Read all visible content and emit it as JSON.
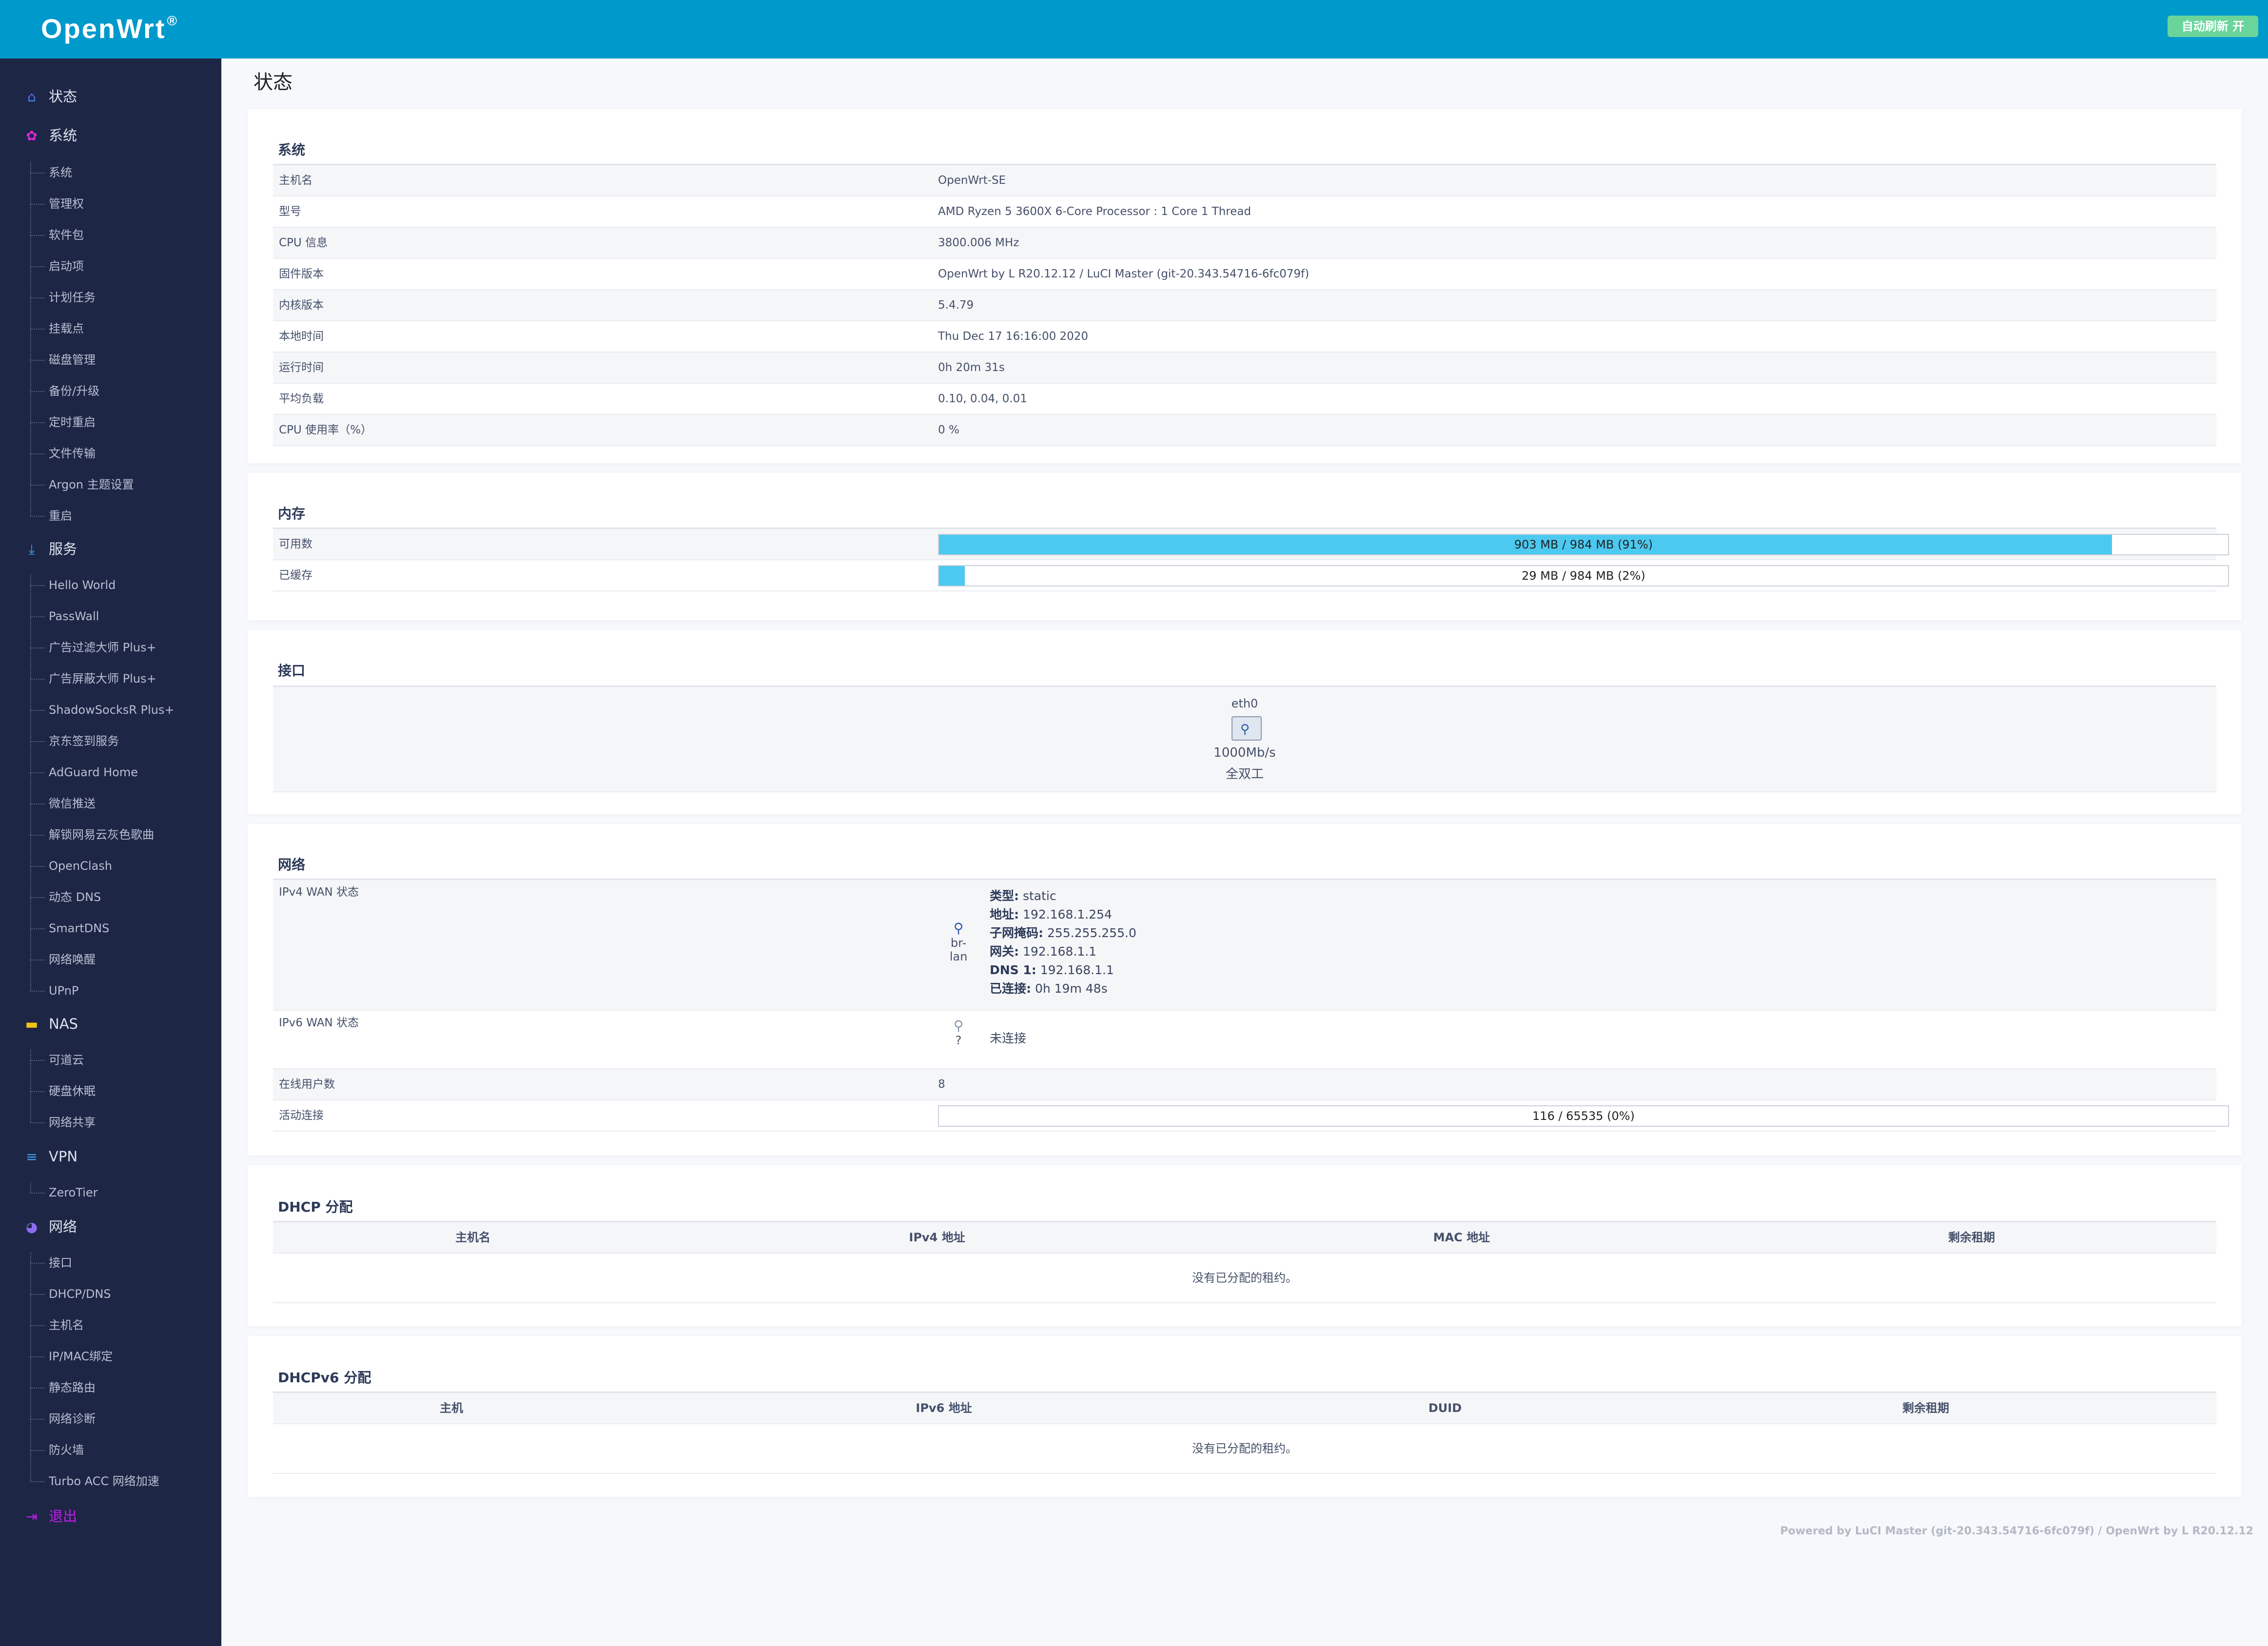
{
  "header": {
    "brand": "OpenWrt",
    "brand_mark": "®",
    "refresh_label": "自动刷新 开"
  },
  "sidebar": {
    "categories": {
      "status": "状态",
      "system": "系统",
      "services": "服务",
      "nas": "NAS",
      "vpn": "VPN",
      "network": "网络",
      "logout": "退出"
    },
    "system_items": [
      "系统",
      "管理权",
      "软件包",
      "启动项",
      "计划任务",
      "挂载点",
      "磁盘管理",
      "备份/升级",
      "定时重启",
      "文件传输",
      "Argon 主题设置",
      "重启"
    ],
    "services_items": [
      "Hello World",
      "PassWall",
      "广告过滤大师 Plus+",
      "广告屏蔽大师 Plus+",
      "ShadowSocksR Plus+",
      "京东签到服务",
      "AdGuard Home",
      "微信推送",
      "解锁网易云灰色歌曲",
      "OpenClash",
      "动态 DNS",
      "SmartDNS",
      "网络唤醒",
      "UPnP"
    ],
    "nas_items": [
      "可道云",
      "硬盘休眠",
      "网络共享"
    ],
    "vpn_items": [
      "ZeroTier"
    ],
    "network_items": [
      "接口",
      "DHCP/DNS",
      "主机名",
      "IP/MAC绑定",
      "静态路由",
      "网络诊断",
      "防火墙",
      "Turbo ACC 网络加速"
    ]
  },
  "page_title": "状态",
  "system": {
    "title": "系统",
    "rows": [
      {
        "k": "主机名",
        "v": "OpenWrt-SE"
      },
      {
        "k": "型号",
        "v": "AMD Ryzen 5 3600X 6-Core Processor : 1 Core 1 Thread"
      },
      {
        "k": "CPU 信息",
        "v": "3800.006 MHz"
      },
      {
        "k": "固件版本",
        "v": "OpenWrt by L R20.12.12 / LuCI Master (git-20.343.54716-6fc079f)"
      },
      {
        "k": "内核版本",
        "v": "5.4.79"
      },
      {
        "k": "本地时间",
        "v": "Thu Dec 17 16:16:00 2020"
      },
      {
        "k": "运行时间",
        "v": "0h 20m 31s"
      },
      {
        "k": "平均负载",
        "v": "0.10, 0.04, 0.01"
      },
      {
        "k": "CPU 使用率（%）",
        "v": "0 %"
      }
    ]
  },
  "memory": {
    "title": "内存",
    "available_label": "可用数",
    "available_text": "903 MB / 984 MB (91%)",
    "available_fraction": 0.91,
    "cached_label": "已缓存",
    "cached_text": "29 MB / 984 MB (2%)",
    "cached_fraction": 0.02
  },
  "interfaces": {
    "title": "接口",
    "name": "eth0",
    "speed": "1000Mb/s",
    "duplex": "全双工"
  },
  "network": {
    "title": "网络",
    "ipv4_label": "IPv4 WAN 状态",
    "ipv4_iface": "br-lan",
    "ipv4_details": [
      {
        "k": "类型:",
        "v": "static"
      },
      {
        "k": "地址:",
        "v": "192.168.1.254"
      },
      {
        "k": "子网掩码:",
        "v": "255.255.255.0"
      },
      {
        "k": "网关:",
        "v": "192.168.1.1"
      },
      {
        "k": "DNS 1:",
        "v": "192.168.1.1"
      },
      {
        "k": "已连接:",
        "v": "0h 19m 48s"
      }
    ],
    "ipv6_label": "IPv6 WAN 状态",
    "ipv6_iface": "?",
    "ipv6_status": "未连接",
    "online_users_label": "在线用户数",
    "online_users": "8",
    "connections_label": "活动连接",
    "connections_text": "116 / 65535 (0%)",
    "connections_fraction": 0.0
  },
  "dhcp": {
    "title": "DHCP 分配",
    "columns": [
      "主机名",
      "IPv4 地址",
      "MAC 地址",
      "剩余租期"
    ],
    "empty": "没有已分配的租约。"
  },
  "dhcpv6": {
    "title": "DHCPv6 分配",
    "columns": [
      "主机",
      "IPv6 地址",
      "DUID",
      "剩余租期"
    ],
    "empty": "没有已分配的租约。"
  },
  "footer": "Powered by LuCI Master (git-20.343.54716-6fc079f) / OpenWrt by L R20.12.12",
  "colors": {
    "header": "#0099cc",
    "sidebar": "#1e2645",
    "progress_fill": "#4cc9f0",
    "refresh_badge": "#6ad59b",
    "logout": "#c11cf0"
  }
}
